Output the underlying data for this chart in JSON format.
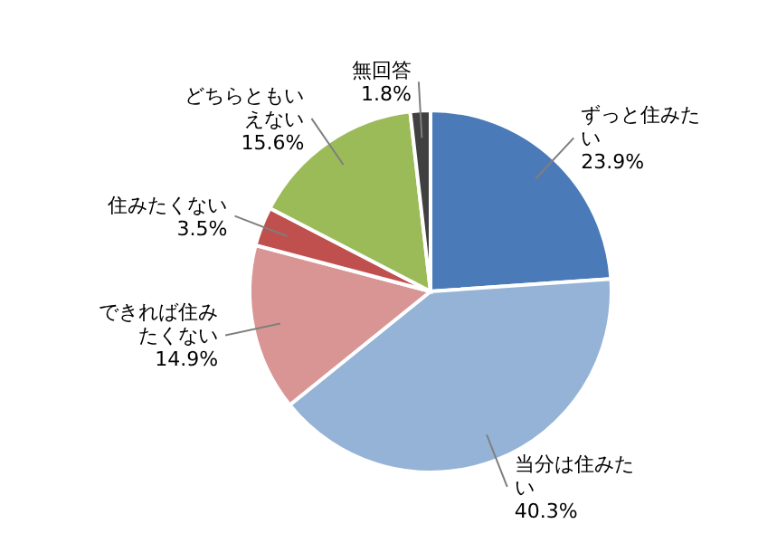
{
  "chart_data": {
    "type": "pie",
    "categories": [
      "ずっと住みたい",
      "当分は住みたい",
      "できれば住みたくない",
      "住みたくない",
      "どちらともいえない",
      "無回答"
    ],
    "values": [
      23.9,
      40.3,
      14.9,
      3.5,
      15.6,
      1.8
    ],
    "value_labels": [
      "23.9%",
      "40.3%",
      "14.9%",
      "3.5%",
      "15.6%",
      "1.8%"
    ],
    "colors": [
      "#4a7ab8",
      "#95b3d7",
      "#d99594",
      "#c0504d",
      "#9bbb59",
      "#404040"
    ],
    "legend": false
  }
}
